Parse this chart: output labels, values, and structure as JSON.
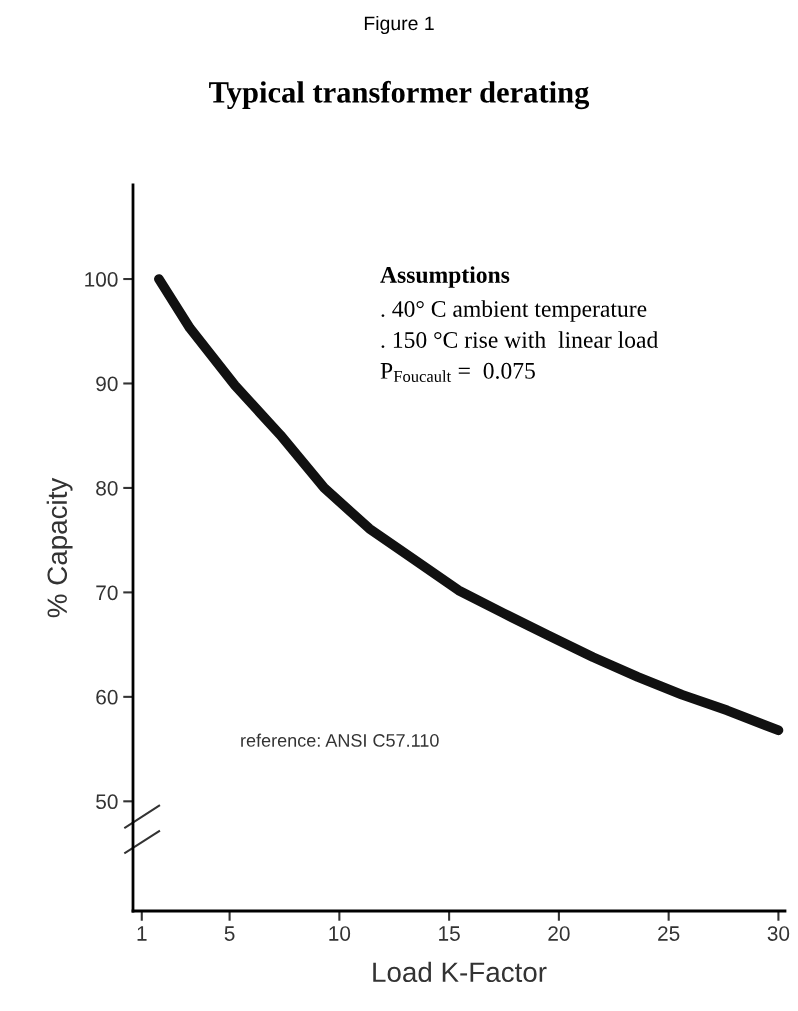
{
  "chart_data": {
    "type": "line",
    "title": "Typical transformer derating",
    "subtitle": "Figure 1",
    "xlabel": "Load K-Factor",
    "ylabel": "% Capacity",
    "x": [
      1.78,
      3.19,
      5.25,
      7.3,
      9.31,
      11.37,
      13.37,
      15.43,
      17.48,
      19.49,
      21.55,
      23.6,
      25.61,
      27.67,
      30
    ],
    "series": [
      {
        "color": "#111111",
        "values": [
          100,
          95.3,
          89.8,
          85.1,
          80.0,
          76.1,
          73.2,
          70.2,
          68.0,
          65.9,
          63.8,
          61.9,
          60.2,
          58.7,
          56.8
        ]
      }
    ],
    "xlim": [
      0.6,
      30.3
    ],
    "xticks": [
      1,
      5,
      10,
      15,
      20,
      25,
      30
    ],
    "ylim": [
      39.5,
      109
    ],
    "yticks": [
      50,
      60,
      70,
      80,
      90,
      100
    ],
    "annotations": [
      "Assumptions",
      ". 40° C ambient temperature",
      ". 150 °C rise with  linear load",
      "P$_{Foucault}$ =  0.075",
      "reference: ANSI C57.110"
    ],
    "grid": false,
    "legend": false,
    "marker": "none",
    "line_style": "solid"
  }
}
